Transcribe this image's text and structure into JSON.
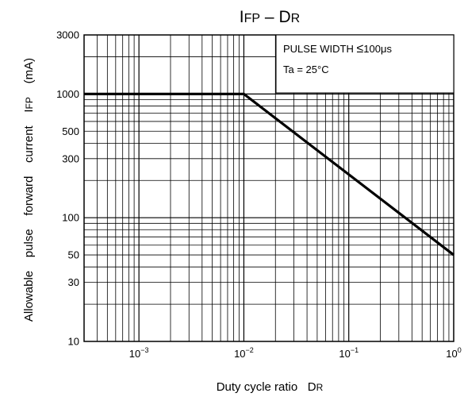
{
  "chart_data": {
    "type": "line",
    "title": {
      "main_a": "I",
      "main_b": "FP",
      "sep": " – ",
      "main_c": "D",
      "main_d": "R"
    },
    "xlabel": {
      "text": "Duty cycle ratio",
      "sym_a": "D",
      "sym_b": "R"
    },
    "ylabel": {
      "words": [
        "Allowable",
        "pulse",
        "forward",
        "current",
        "I",
        "FP",
        "(mA)"
      ]
    },
    "x_scale": "log",
    "y_scale": "log",
    "xlim": [
      0.0003,
      1
    ],
    "ylim": [
      10,
      3000
    ],
    "x_ticks": [
      {
        "value": 0.001,
        "base": "10",
        "exp": "−3"
      },
      {
        "value": 0.01,
        "base": "10",
        "exp": "−2"
      },
      {
        "value": 0.1,
        "base": "10",
        "exp": "−1"
      },
      {
        "value": 1,
        "base": "10",
        "exp": "0"
      }
    ],
    "y_ticks": [
      {
        "value": 10,
        "label": "10"
      },
      {
        "value": 30,
        "label": "30"
      },
      {
        "value": 50,
        "label": "50"
      },
      {
        "value": 100,
        "label": "100"
      },
      {
        "value": 300,
        "label": "300"
      },
      {
        "value": 500,
        "label": "500"
      },
      {
        "value": 1000,
        "label": "1000"
      },
      {
        "value": 3000,
        "label": "3000"
      }
    ],
    "grid": true,
    "series": [
      {
        "x": [
          0.0003,
          0.01,
          1
        ],
        "y": [
          1000,
          1000,
          50
        ]
      }
    ],
    "annotations": [
      {
        "text": "PULSE WIDTH",
        "symbol": "≤",
        "value": "100",
        "unit": "μs"
      },
      {
        "text": "Ta = 25°C"
      }
    ],
    "colors": {
      "line": "#000000",
      "grid": "#000000",
      "background": "#ffffff"
    }
  }
}
